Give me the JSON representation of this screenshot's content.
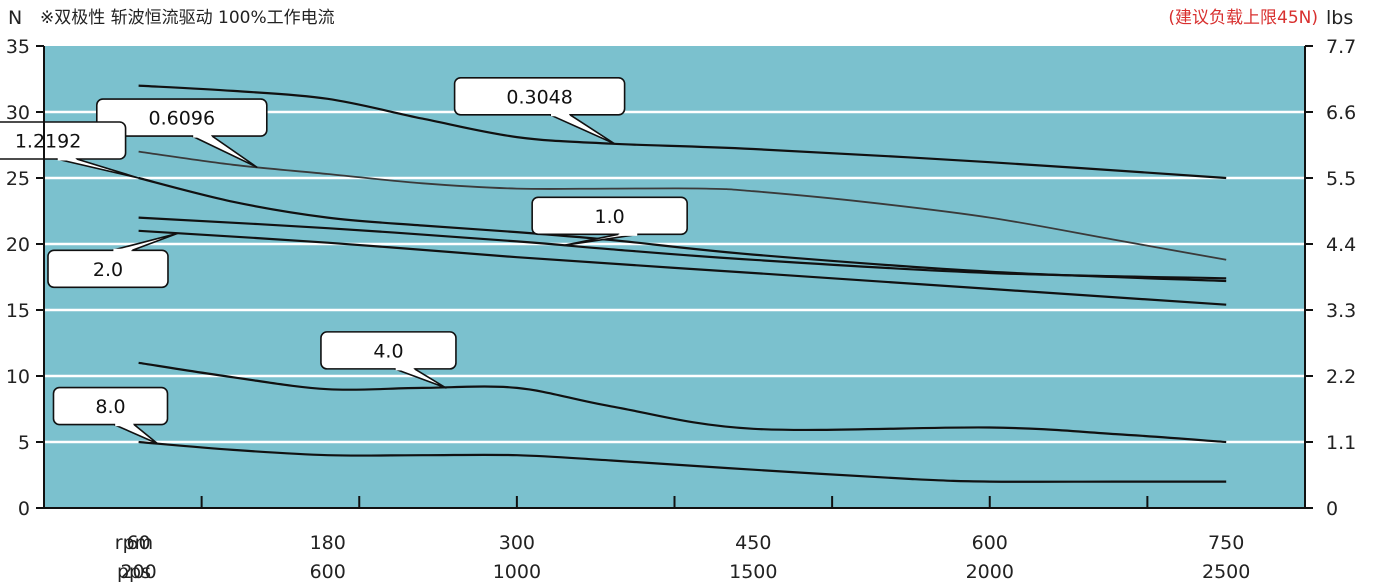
{
  "header": {
    "left_unit": "N",
    "note": "※双极性 斩波恒流驱动 100%工作电流",
    "recommended": "(建议负载上限45N)",
    "right_unit": "lbs"
  },
  "colors": {
    "plot_bg": "#7bc1ce",
    "grid": "#ffffff",
    "curve": "#111111",
    "curve_alt": "#3a3a3a",
    "red_note": "#d8302f"
  },
  "chart_data": {
    "type": "line",
    "x": [
      60,
      180,
      300,
      450,
      600,
      750
    ],
    "x_pps": [
      200,
      600,
      1000,
      1500,
      2000,
      2500
    ],
    "xlabel_rows": [
      "rpm",
      "pps"
    ],
    "xlim": [
      0,
      800
    ],
    "ylim": [
      0,
      35
    ],
    "y_ticks": [
      0,
      5,
      10,
      15,
      20,
      25,
      30,
      35
    ],
    "y2_ticks": [
      "0",
      "1.1",
      "2.2",
      "3.3",
      "4.4",
      "5.5",
      "6.6",
      "7.7"
    ],
    "grid": true,
    "series": [
      {
        "name": "0.3048",
        "x": [
          60,
          120,
          180,
          240,
          300,
          360,
          450,
          600,
          750
        ],
        "values": [
          32,
          31.6,
          31,
          29.5,
          28.1,
          27.6,
          27.2,
          26.2,
          25
        ]
      },
      {
        "name": "0.6096",
        "x": [
          60,
          120,
          180,
          240,
          300,
          360,
          420,
          450,
          520,
          600,
          680,
          750
        ],
        "values": [
          27,
          26,
          25.3,
          24.6,
          24.2,
          24.2,
          24.2,
          24,
          23.2,
          22,
          20.3,
          18.8
        ]
      },
      {
        "name": "1.2192",
        "x": [
          60,
          120,
          180,
          240,
          300,
          360,
          450,
          600,
          750
        ],
        "values": [
          25,
          23.2,
          22,
          21.4,
          20.9,
          20.3,
          19.2,
          17.9,
          17.2
        ]
      },
      {
        "name": "1.0",
        "x": [
          60,
          180,
          300,
          360,
          450,
          600,
          750
        ],
        "values": [
          22,
          21.2,
          20.2,
          19.6,
          18.8,
          17.8,
          17.4
        ]
      },
      {
        "name": "2.0",
        "x": [
          60,
          180,
          300,
          450,
          600,
          750
        ],
        "values": [
          21,
          20.1,
          19,
          17.8,
          16.6,
          15.4
        ]
      },
      {
        "name": "4.0",
        "x": [
          60,
          120,
          180,
          240,
          300,
          360,
          450,
          600,
          680,
          750
        ],
        "values": [
          11,
          9.9,
          9,
          9.1,
          9.1,
          7.7,
          6,
          6.1,
          5.6,
          5
        ]
      },
      {
        "name": "8.0",
        "x": [
          60,
          120,
          180,
          240,
          300,
          360,
          450,
          550,
          600,
          680,
          750
        ],
        "values": [
          5,
          4.4,
          4,
          4,
          4,
          3.6,
          2.9,
          2.2,
          2,
          2,
          2
        ]
      }
    ]
  }
}
